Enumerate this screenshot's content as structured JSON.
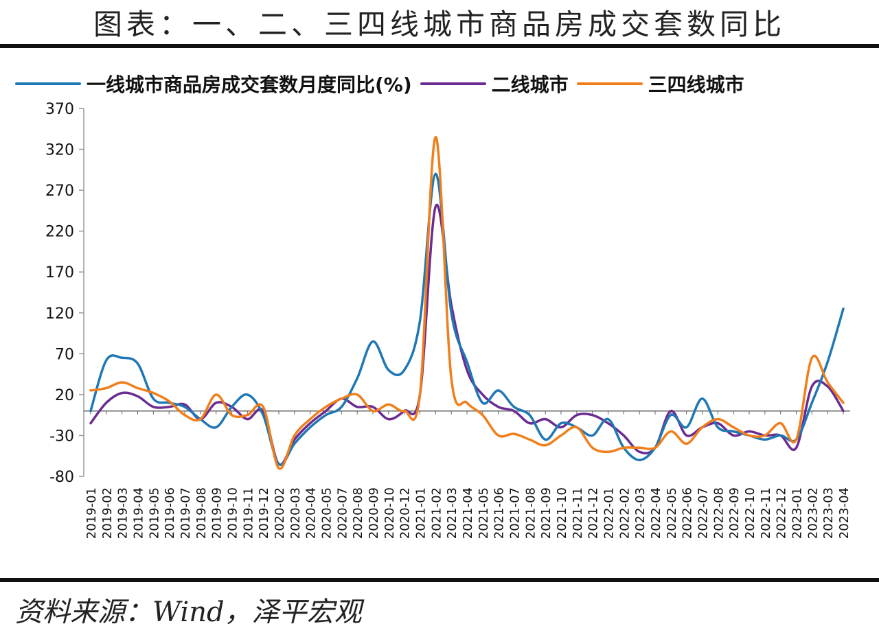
{
  "title": "图表：一、二、三四线城市商品房成交套数同比",
  "source": "资料来源：Wind，泽平宏观",
  "colors": {
    "tier1": "#1f77b4",
    "tier2": "#6a2c91",
    "tier34": "#f07f1b"
  },
  "chart_data": {
    "type": "line",
    "yticks": [
      370,
      320,
      270,
      220,
      170,
      120,
      70,
      20,
      -30,
      -80
    ],
    "ylim": [
      -80,
      370
    ],
    "grid": false,
    "legend": "top",
    "x": [
      "2019-01",
      "2019-02",
      "2019-03",
      "2019-04",
      "2019-05",
      "2019-06",
      "2019-07",
      "2019-08",
      "2019-09",
      "2019-10",
      "2019-11",
      "2019-12",
      "2020-02",
      "2020-03",
      "2020-04",
      "2020-05",
      "2020-07",
      "2020-08",
      "2020-09",
      "2020-10",
      "2020-12",
      "2021-01",
      "2021-02",
      "2021-03",
      "2021-04",
      "2021-05",
      "2021-06",
      "2021-07",
      "2021-08",
      "2021-09",
      "2021-10",
      "2021-11",
      "2021-12",
      "2022-01",
      "2022-02",
      "2022-03",
      "2022-04",
      "2022-05",
      "2022-06",
      "2022-07",
      "2022-08",
      "2022-09",
      "2022-10",
      "2022-11",
      "2022-12",
      "2023-01",
      "2023-02",
      "2023-03",
      "2023-04"
    ],
    "series": [
      {
        "name": "一线城市商品房成交套数月度同比(%)",
        "color": "#1f77b4",
        "values": [
          0,
          62,
          65,
          58,
          15,
          10,
          5,
          -10,
          -20,
          5,
          20,
          -5,
          -65,
          -40,
          -20,
          -5,
          5,
          40,
          85,
          50,
          50,
          110,
          290,
          120,
          60,
          10,
          25,
          5,
          -5,
          -35,
          -15,
          -20,
          -30,
          -10,
          -45,
          -60,
          -45,
          -5,
          -20,
          15,
          -20,
          -25,
          -30,
          -35,
          -30,
          -35,
          10,
          60,
          125
        ]
      },
      {
        "name": "二线城市",
        "color": "#6a2c91",
        "values": [
          -15,
          10,
          22,
          18,
          5,
          5,
          8,
          -10,
          10,
          5,
          -10,
          0,
          -65,
          -35,
          -15,
          0,
          15,
          5,
          5,
          -10,
          0,
          20,
          250,
          130,
          50,
          20,
          5,
          0,
          -15,
          -10,
          -20,
          -5,
          -5,
          -15,
          -30,
          -50,
          -45,
          0,
          -30,
          -20,
          -15,
          -30,
          -25,
          -30,
          -30,
          -45,
          30,
          30,
          0
        ]
      },
      {
        "name": "三四线城市",
        "color": "#f07f1b",
        "values": [
          25,
          28,
          35,
          28,
          22,
          12,
          -5,
          -10,
          20,
          -5,
          -5,
          5,
          -70,
          -30,
          -10,
          5,
          15,
          20,
          0,
          8,
          0,
          20,
          335,
          40,
          10,
          -5,
          -30,
          -28,
          -35,
          -42,
          -30,
          -20,
          -45,
          -50,
          -45,
          -45,
          -45,
          -25,
          -40,
          -20,
          -10,
          -20,
          -30,
          -30,
          -15,
          -35,
          65,
          35,
          10
        ]
      }
    ]
  }
}
